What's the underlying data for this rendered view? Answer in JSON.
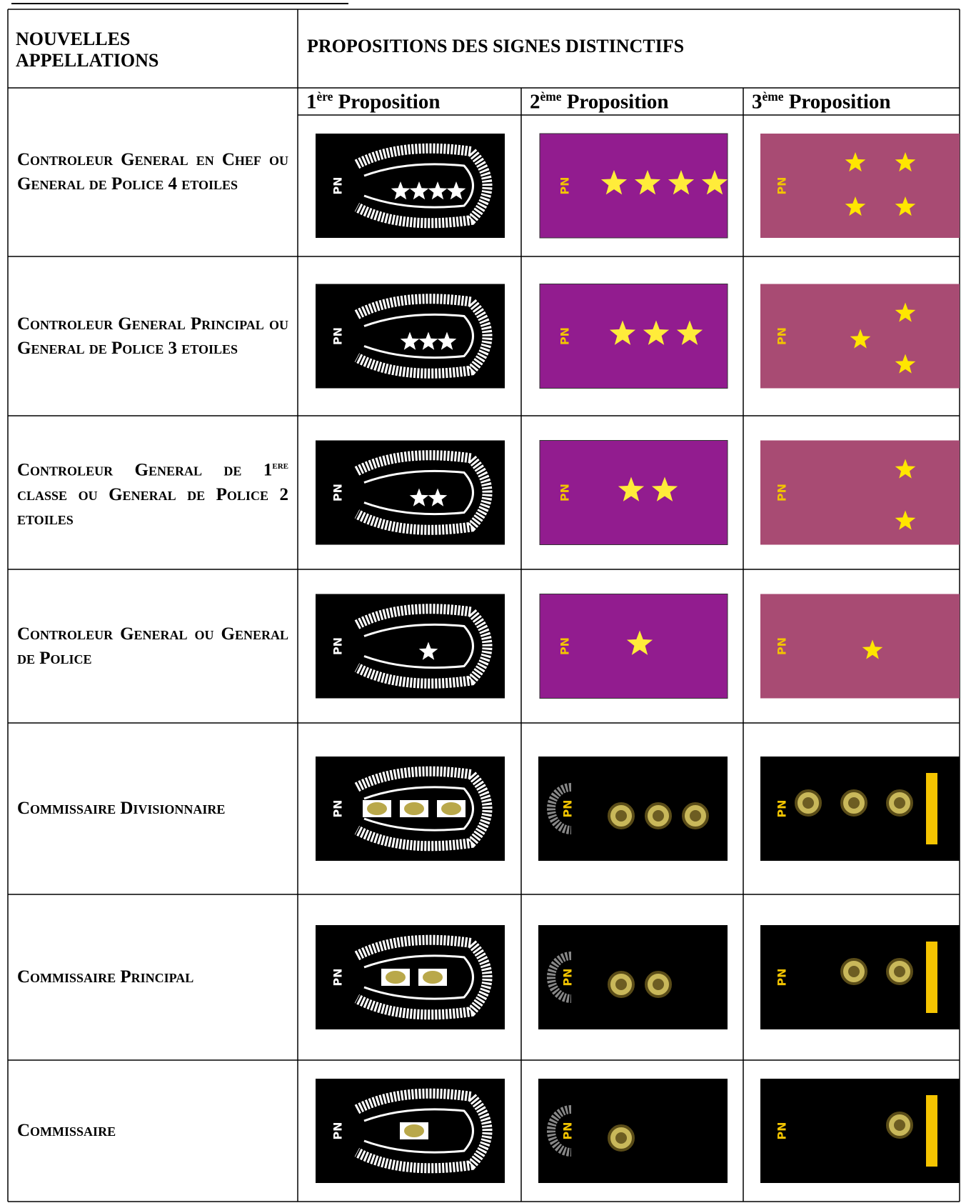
{
  "header": {
    "appellations": "NOUVELLES APPELLATIONS",
    "propositions": "PROPOSITIONS DES SIGNES DISTINCTIFS"
  },
  "proposals": [
    {
      "number": "1",
      "suffix": "ère",
      "label": "Proposition"
    },
    {
      "number": "2",
      "suffix": "ème",
      "label": "Proposition"
    },
    {
      "number": "3",
      "suffix": "ème",
      "label": "Proposition"
    }
  ],
  "badge_text": "PN",
  "rows": [
    {
      "name": "Controleur General en Chef ou General de Police 4 etoiles"
    },
    {
      "name": "Controleur General Principal ou General de Police 3 etoiles"
    },
    {
      "name_parts": [
        "Controleur General de 1",
        "ere",
        " classe ou General de Police 2 etoiles"
      ]
    },
    {
      "name": "Controleur General ou General de Police"
    },
    {
      "name": "Commissaire Divisionnaire"
    },
    {
      "name": "Commissaire Principal"
    },
    {
      "name": "Commissaire"
    }
  ]
}
